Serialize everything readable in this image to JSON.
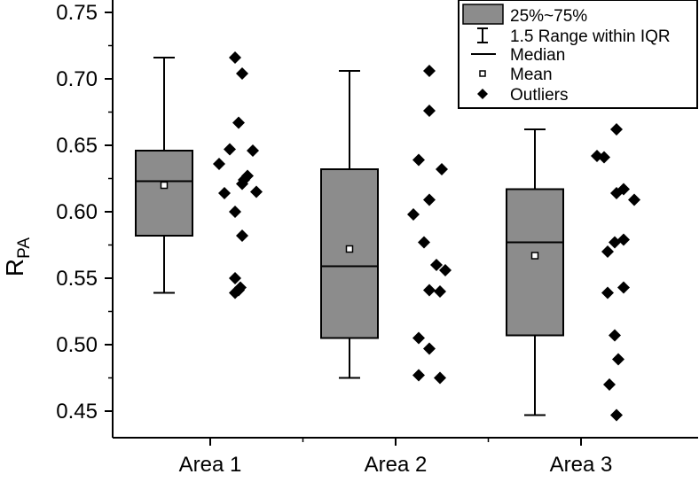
{
  "chart_data": {
    "type": "box",
    "title": "",
    "xlabel": "",
    "ylabel": "R",
    "ylabel_subscript": "PA",
    "ylim": [
      0.43,
      0.75
    ],
    "yticks": [
      0.45,
      0.5,
      0.55,
      0.6,
      0.65,
      0.7,
      0.75
    ],
    "ytick_labels": [
      "0.45",
      "0.50",
      "0.55",
      "0.60",
      "0.65",
      "0.70",
      "0.75"
    ],
    "categories": [
      "Area 1",
      "Area 2",
      "Area 3"
    ],
    "box_color": "#8c8c8c",
    "boxes": [
      {
        "category": "Area 1",
        "whisker_low": 0.539,
        "q1": 0.582,
        "median": 0.623,
        "q3": 0.646,
        "whisker_high": 0.716,
        "mean": 0.62
      },
      {
        "category": "Area 2",
        "whisker_low": 0.475,
        "q1": 0.505,
        "median": 0.559,
        "q3": 0.632,
        "whisker_high": 0.706,
        "mean": 0.572
      },
      {
        "category": "Area 3",
        "whisker_low": 0.447,
        "q1": 0.507,
        "median": 0.577,
        "q3": 0.617,
        "whisker_high": 0.662,
        "mean": 0.567
      }
    ],
    "points": [
      [
        {
          "y": 0.716,
          "j": 0.7
        },
        {
          "y": 0.704,
          "j": 0.9
        },
        {
          "y": 0.667,
          "j": 0.8
        },
        {
          "y": 0.647,
          "j": 0.55
        },
        {
          "y": 0.646,
          "j": 1.2
        },
        {
          "y": 0.636,
          "j": 0.25
        },
        {
          "y": 0.627,
          "j": 1.05
        },
        {
          "y": 0.624,
          "j": 0.95
        },
        {
          "y": 0.621,
          "j": 0.9
        },
        {
          "y": 0.615,
          "j": 1.3
        },
        {
          "y": 0.614,
          "j": 0.4
        },
        {
          "y": 0.6,
          "j": 0.7
        },
        {
          "y": 0.582,
          "j": 0.9
        },
        {
          "y": 0.55,
          "j": 0.7
        },
        {
          "y": 0.543,
          "j": 0.85
        },
        {
          "y": 0.541,
          "j": 0.8
        },
        {
          "y": 0.539,
          "j": 0.7
        }
      ],
      [
        {
          "y": 0.706,
          "j": 0.95
        },
        {
          "y": 0.676,
          "j": 0.95
        },
        {
          "y": 0.639,
          "j": 0.65
        },
        {
          "y": 0.632,
          "j": 1.3
        },
        {
          "y": 0.609,
          "j": 0.95
        },
        {
          "y": 0.598,
          "j": 0.5
        },
        {
          "y": 0.577,
          "j": 0.8
        },
        {
          "y": 0.56,
          "j": 1.15
        },
        {
          "y": 0.556,
          "j": 1.4
        },
        {
          "y": 0.541,
          "j": 0.95
        },
        {
          "y": 0.54,
          "j": 1.25
        },
        {
          "y": 0.505,
          "j": 0.65
        },
        {
          "y": 0.497,
          "j": 0.95
        },
        {
          "y": 0.477,
          "j": 0.65
        },
        {
          "y": 0.475,
          "j": 1.25
        }
      ],
      [
        {
          "y": 0.662,
          "j": 1.0
        },
        {
          "y": 0.642,
          "j": 0.45
        },
        {
          "y": 0.641,
          "j": 0.65
        },
        {
          "y": 0.617,
          "j": 1.2
        },
        {
          "y": 0.614,
          "j": 1.0
        },
        {
          "y": 0.609,
          "j": 1.5
        },
        {
          "y": 0.579,
          "j": 1.2
        },
        {
          "y": 0.577,
          "j": 0.95
        },
        {
          "y": 0.57,
          "j": 0.75
        },
        {
          "y": 0.543,
          "j": 1.2
        },
        {
          "y": 0.539,
          "j": 0.75
        },
        {
          "y": 0.507,
          "j": 0.95
        },
        {
          "y": 0.489,
          "j": 1.05
        },
        {
          "y": 0.47,
          "j": 0.8
        },
        {
          "y": 0.447,
          "j": 1.0
        }
      ]
    ],
    "legend": {
      "position": "top-right",
      "items": [
        {
          "symbol": "box",
          "label": "25%~75%"
        },
        {
          "symbol": "whisker",
          "label": "1.5 Range within IQR"
        },
        {
          "symbol": "line",
          "label": "Median"
        },
        {
          "symbol": "square",
          "label": "Mean"
        },
        {
          "symbol": "diamond",
          "label": "Outliers"
        }
      ]
    }
  }
}
